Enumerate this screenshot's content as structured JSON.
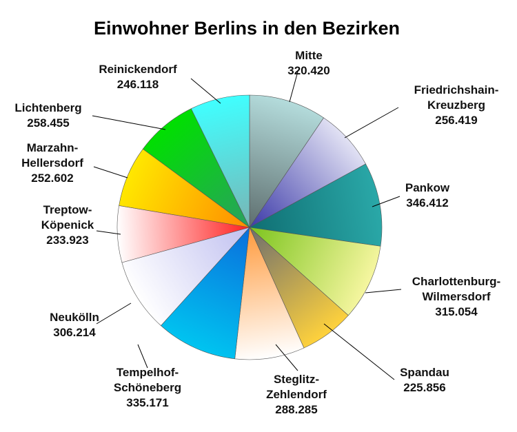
{
  "chart_data": {
    "type": "pie",
    "title": "Einwohner Berlins in den Bezirken",
    "categories": [
      "Mitte",
      "Friedrichshain-Kreuzberg",
      "Pankow",
      "Charlottenburg-Wilmersdorf",
      "Spandau",
      "Steglitz-Zehlendorf",
      "Tempelhof-Schöneberg",
      "Neukölln",
      "Treptow-Köpenick",
      "Marzahn-Hellersdorf",
      "Lichtenberg",
      "Reinickendorf"
    ],
    "values": [
      320420,
      256419,
      346412,
      315054,
      225856,
      288285,
      335171,
      306214,
      233923,
      252602,
      258455,
      246118
    ],
    "labels": [
      {
        "lines": [
          "Mitte"
        ],
        "value": "320.420"
      },
      {
        "lines": [
          "Friedrichshain-",
          "Kreuzberg"
        ],
        "value": "256.419"
      },
      {
        "lines": [
          "Pankow"
        ],
        "value": "346.412"
      },
      {
        "lines": [
          "Charlottenburg-",
          "Wilmersdorf"
        ],
        "value": "315.054"
      },
      {
        "lines": [
          "Spandau"
        ],
        "value": "225.856"
      },
      {
        "lines": [
          "Steglitz-",
          "Zehlendorf"
        ],
        "value": "288.285"
      },
      {
        "lines": [
          "Tempelhof-",
          "Schöneberg"
        ],
        "value": "335.171"
      },
      {
        "lines": [
          "Neukölln"
        ],
        "value": "306.214"
      },
      {
        "lines": [
          "Treptow-",
          "Köpenick"
        ],
        "value": "233.923"
      },
      {
        "lines": [
          "Marzahn-",
          "Hellersdorf"
        ],
        "value": "252.602"
      },
      {
        "lines": [
          "Lichtenberg"
        ],
        "value": "258.455"
      },
      {
        "lines": [
          "Reinickendorf"
        ],
        "value": "246.118"
      }
    ],
    "colors": [
      [
        "#b4dcdc",
        "#5e6e6e"
      ],
      [
        "#e2e2f4",
        "#3c3aa8"
      ],
      [
        "#2aa8a8",
        "#0f6e72"
      ],
      [
        "#f6f6a0",
        "#7cc41e"
      ],
      [
        "#ffd23c",
        "#6e6e6e"
      ],
      [
        "#ffffff",
        "#ff9a3c"
      ],
      [
        "#00c4f0",
        "#0a6edc"
      ],
      [
        "#ffffff",
        "#c0c0f0"
      ],
      [
        "#ffffff",
        "#ff2020"
      ],
      [
        "#ffe800",
        "#ff8c00"
      ],
      [
        "#00e000",
        "#2aa060"
      ],
      [
        "#40ffff",
        "#7ab4b4"
      ]
    ],
    "start_angle_deg": 0,
    "direction": "clockwise",
    "legend": "none"
  }
}
